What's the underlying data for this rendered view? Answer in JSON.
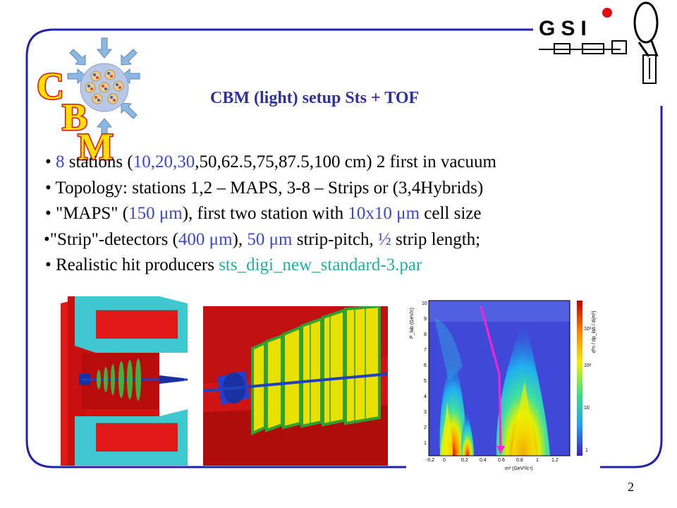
{
  "slide": {
    "title": "CBM (light) setup Sts + TOF",
    "page_number": "2",
    "logo_cbm_letters": [
      "C",
      "B",
      "M"
    ],
    "logo_gsi_text": "GSI"
  },
  "bullets": [
    {
      "segments": [
        {
          "text": "• ",
          "color": "black"
        },
        {
          "text": "8",
          "color": "blue"
        },
        {
          "text": " stations (",
          "color": "black"
        },
        {
          "text": "10,20,30",
          "color": "blue"
        },
        {
          "text": ",50,62.5,75,87.5,100 cm) 2 first in vacuum",
          "color": "black"
        }
      ]
    },
    {
      "segments": [
        {
          "text": "• Topology: stations 1,2 – MAPS, 3-8 – Strips or (3,4Hybrids)",
          "color": "black"
        }
      ]
    },
    {
      "segments": [
        {
          "text": "• \"MAPS\" (",
          "color": "black"
        },
        {
          "text": "150 μm",
          "color": "blue"
        },
        {
          "text": "), first two station with ",
          "color": "black"
        },
        {
          "text": "10x10 μm",
          "color": "blue"
        },
        {
          "text": " cell size",
          "color": "black"
        }
      ]
    },
    {
      "segments": [
        {
          "text": "•\"Strip\"-detectors (",
          "color": "black"
        },
        {
          "text": "400 μm",
          "color": "blue"
        },
        {
          "text": "), ",
          "color": "black"
        },
        {
          "text": "50 μm",
          "color": "blue"
        },
        {
          "text": " strip-pitch, ",
          "color": "black"
        },
        {
          "text": "½",
          "color": "blue"
        },
        {
          "text": " strip length;",
          "color": "black"
        }
      ]
    },
    {
      "segments": [
        {
          "text": "• Realistic hit producers ",
          "color": "black"
        },
        {
          "text": "sts_digi_new_standard-3.par",
          "color": "green"
        }
      ]
    }
  ],
  "plot": {
    "y_axis_label": "P_lab (GeV/c)",
    "y_ticks": [
      "10",
      "9",
      "8",
      "7",
      "6",
      "5",
      "4",
      "3",
      "2",
      "1"
    ],
    "x_axis_label": "m² (GeV²/c⁴)",
    "x_ticks": [
      "-0.2",
      "0",
      "0.2",
      "0.4",
      "0.6",
      "0.8",
      "1",
      "1.2"
    ],
    "z_axis_label": "d²n / dp_lab / d(m²)",
    "z_ticks": [
      "10³",
      "10²",
      "10",
      "1"
    ]
  },
  "colors": {
    "title": "#2F2FA0",
    "accent_blue": "#3C48C8",
    "accent_green": "#21B0A0",
    "frame": "#2222AA",
    "logo_red": "#E01010",
    "logo_yellow": "#FFE000"
  }
}
